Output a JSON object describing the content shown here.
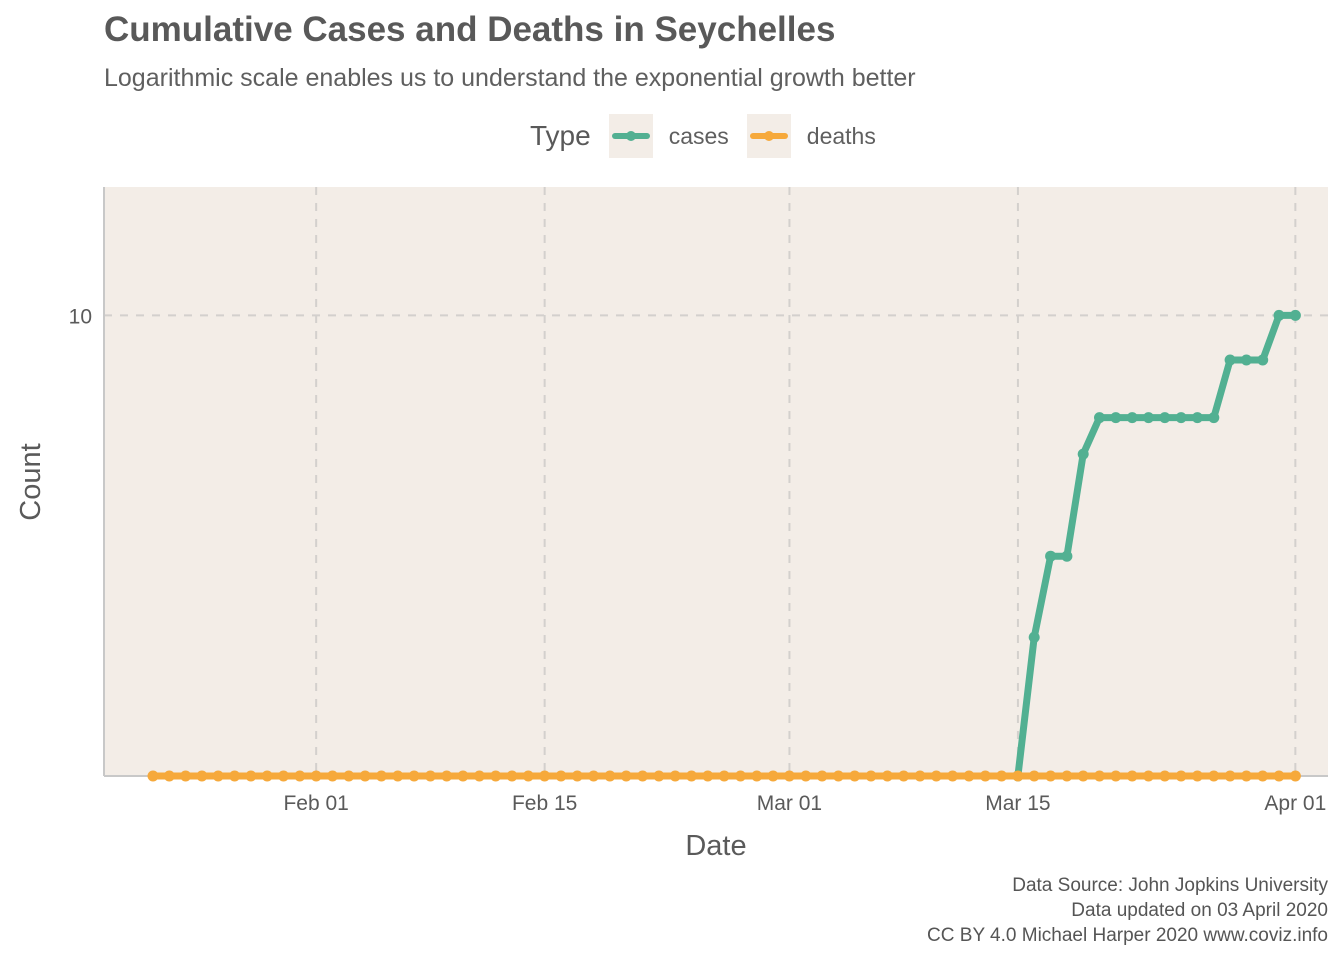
{
  "title": "Cumulative Cases and Deaths in Seychelles",
  "subtitle": "Logarithmic scale enables us to understand the exponential growth better",
  "legend": {
    "title": "Type",
    "items": [
      {
        "label": "cases",
        "color": "#52b092"
      },
      {
        "label": "deaths",
        "color": "#f6a93b"
      }
    ]
  },
  "caption": {
    "line1": "Data Source: John Jopkins University",
    "line2": "Data updated on 03 April 2020",
    "line3": "CC BY 4.0 Michael Harper 2020 www.coviz.info"
  },
  "chart_data": {
    "type": "line",
    "xlabel": "Date",
    "ylabel": "Count",
    "y_scale": "log",
    "ylim": [
      1,
      19
    ],
    "xlim": [
      "2020-01-19",
      "2020-04-03"
    ],
    "x_ticks": [
      {
        "date": "2020-02-01",
        "label": "Feb 01"
      },
      {
        "date": "2020-02-15",
        "label": "Feb 15"
      },
      {
        "date": "2020-03-01",
        "label": "Mar 01"
      },
      {
        "date": "2020-03-15",
        "label": "Mar 15"
      },
      {
        "date": "2020-04-01",
        "label": "Apr 01"
      }
    ],
    "y_ticks": [
      {
        "value": 10,
        "label": "10"
      }
    ],
    "grid": true,
    "background": "#f3ede7",
    "legend_position": "top",
    "series": [
      {
        "name": "cases",
        "color": "#52b092",
        "points": [
          [
            "2020-03-15",
            1
          ],
          [
            "2020-03-16",
            2
          ],
          [
            "2020-03-17",
            3
          ],
          [
            "2020-03-18",
            3
          ],
          [
            "2020-03-19",
            5
          ],
          [
            "2020-03-20",
            6
          ],
          [
            "2020-03-21",
            6
          ],
          [
            "2020-03-22",
            6
          ],
          [
            "2020-03-23",
            6
          ],
          [
            "2020-03-24",
            6
          ],
          [
            "2020-03-25",
            6
          ],
          [
            "2020-03-26",
            6
          ],
          [
            "2020-03-27",
            6
          ],
          [
            "2020-03-28",
            8
          ],
          [
            "2020-03-29",
            8
          ],
          [
            "2020-03-30",
            8
          ],
          [
            "2020-03-31",
            10
          ],
          [
            "2020-04-01",
            10
          ]
        ]
      },
      {
        "name": "deaths",
        "color": "#f6a93b",
        "constant_value": 1,
        "first_date": "2020-01-22",
        "last_date": "2020-04-01"
      }
    ]
  }
}
